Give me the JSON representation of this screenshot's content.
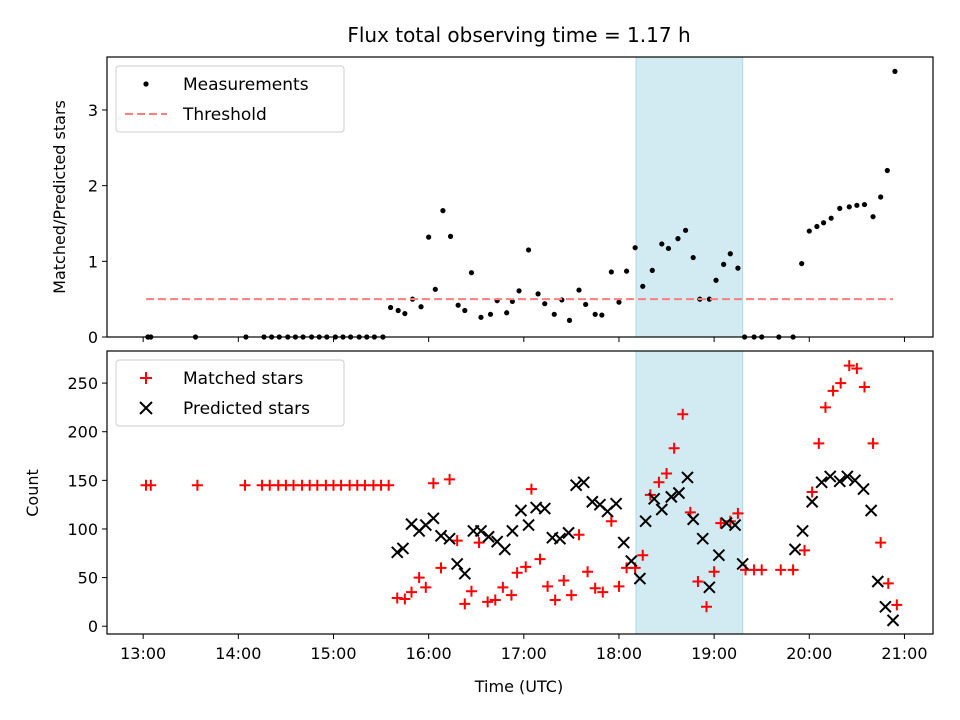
{
  "chart_data": [
    {
      "type": "scatter",
      "title": "Flux total observing time = 1.17 h",
      "xlabel": "",
      "ylabel": "Matched/Predicted stars",
      "xlim": [
        12.62,
        21.3
      ],
      "ylim": [
        0,
        3.7
      ],
      "yticks": [
        0,
        1,
        2,
        3
      ],
      "highlight_span": [
        18.18,
        19.3
      ],
      "legend_position": "upper-left",
      "series": [
        {
          "name": "Measurements",
          "marker": "dot",
          "color": "#000000",
          "x": [
            13.05,
            13.08,
            13.55,
            14.08,
            14.27,
            14.35,
            14.43,
            14.52,
            14.6,
            14.68,
            14.77,
            14.85,
            14.93,
            15.02,
            15.1,
            15.18,
            15.27,
            15.35,
            15.43,
            15.52,
            15.6,
            15.68,
            15.75,
            15.83,
            15.92,
            16.0,
            16.07,
            16.15,
            16.23,
            16.31,
            16.38,
            16.45,
            16.55,
            16.65,
            16.72,
            16.82,
            16.88,
            16.95,
            17.05,
            17.15,
            17.22,
            17.32,
            17.4,
            17.48,
            17.58,
            17.65,
            17.75,
            17.82,
            17.92,
            18.0,
            18.08,
            18.17,
            18.25,
            18.35,
            18.45,
            18.52,
            18.62,
            18.7,
            18.78,
            18.85,
            18.95,
            19.02,
            19.1,
            19.17,
            19.25,
            19.32,
            19.42,
            19.5,
            19.68,
            19.83,
            19.92,
            20.0,
            20.08,
            20.15,
            20.23,
            20.32,
            20.42,
            20.5,
            20.58,
            20.67,
            20.75,
            20.82,
            20.9
          ],
          "y": [
            0,
            0,
            0,
            0,
            0,
            0,
            0,
            0,
            0,
            0,
            0,
            0,
            0,
            0,
            0,
            0,
            0,
            0,
            0,
            0,
            0.39,
            0.35,
            0.31,
            0.5,
            0.4,
            1.32,
            0.63,
            1.67,
            1.33,
            0.42,
            0.35,
            0.85,
            0.26,
            0.3,
            0.48,
            0.32,
            0.47,
            0.61,
            1.15,
            0.57,
            0.44,
            0.3,
            0.49,
            0.22,
            0.62,
            0.43,
            0.3,
            0.29,
            0.86,
            0.46,
            0.87,
            1.18,
            0.67,
            0.88,
            1.23,
            1.17,
            1.3,
            1.41,
            1.05,
            0.5,
            0.5,
            0.75,
            0.96,
            1.1,
            0.91,
            0,
            0,
            0,
            0,
            0,
            0.97,
            1.4,
            1.46,
            1.51,
            1.57,
            1.7,
            1.72,
            1.74,
            1.75,
            1.59,
            1.85,
            2.2,
            3.51
          ]
        },
        {
          "name": "Threshold",
          "line_style": "dashed",
          "color": "#ff7f7f",
          "x": [
            13.03,
            20.88
          ],
          "y": [
            0.5,
            0.5
          ]
        }
      ]
    },
    {
      "type": "scatter",
      "title": "",
      "xlabel": "Time (UTC)",
      "ylabel": "Count",
      "xlim": [
        12.62,
        21.3
      ],
      "ylim": [
        -8,
        283
      ],
      "xticks": [
        13,
        14,
        15,
        16,
        17,
        18,
        19,
        20,
        21
      ],
      "xtick_labels": [
        "13:00",
        "14:00",
        "15:00",
        "16:00",
        "17:00",
        "18:00",
        "19:00",
        "20:00",
        "21:00"
      ],
      "yticks": [
        0,
        50,
        100,
        150,
        200,
        250
      ],
      "highlight_span": [
        18.18,
        19.3
      ],
      "legend_position": "upper-left",
      "series": [
        {
          "name": "Matched stars",
          "marker": "plus",
          "color": "#ff0000",
          "x": [
            13.03,
            13.08,
            13.57,
            14.07,
            14.25,
            14.33,
            14.42,
            14.5,
            14.58,
            14.67,
            14.75,
            14.83,
            14.92,
            15.0,
            15.08,
            15.17,
            15.25,
            15.33,
            15.42,
            15.5,
            15.58,
            15.67,
            15.75,
            15.82,
            15.9,
            15.97,
            16.05,
            16.13,
            16.22,
            16.3,
            16.38,
            16.45,
            16.53,
            16.62,
            16.7,
            16.78,
            16.87,
            16.93,
            17.02,
            17.08,
            17.17,
            17.25,
            17.33,
            17.42,
            17.5,
            17.58,
            17.67,
            17.75,
            17.83,
            17.92,
            18.0,
            18.08,
            18.17,
            18.25,
            18.33,
            18.42,
            18.5,
            18.58,
            18.67,
            18.75,
            18.83,
            18.92,
            19.0,
            19.07,
            19.17,
            19.25,
            19.33,
            19.42,
            19.5,
            19.7,
            19.83,
            19.95,
            20.03,
            20.1,
            20.17,
            20.25,
            20.33,
            20.42,
            20.5,
            20.58,
            20.67,
            20.75,
            20.83,
            20.92
          ],
          "y": [
            145,
            145,
            145,
            145,
            145,
            145,
            145,
            145,
            145,
            145,
            145,
            145,
            145,
            145,
            145,
            145,
            145,
            145,
            145,
            145,
            145,
            29,
            28,
            35,
            50,
            40,
            147,
            60,
            151,
            88,
            23,
            36,
            86,
            25,
            27,
            40,
            32,
            55,
            61,
            141,
            69,
            41,
            27,
            47,
            32,
            94,
            56,
            39,
            35,
            108,
            41,
            60,
            60,
            73,
            135,
            148,
            157,
            183,
            218,
            117,
            46,
            20,
            56,
            106,
            108,
            116,
            58,
            58,
            58,
            58,
            58,
            78,
            138,
            188,
            225,
            242,
            250,
            268,
            265,
            246,
            188,
            86,
            44,
            22
          ]
        },
        {
          "name": "Predicted stars",
          "marker": "x",
          "color": "#000000",
          "x": [
            15.67,
            15.73,
            15.82,
            15.9,
            15.97,
            16.05,
            16.13,
            16.22,
            16.3,
            16.38,
            16.47,
            16.55,
            16.63,
            16.72,
            16.8,
            16.88,
            16.97,
            17.05,
            17.13,
            17.22,
            17.3,
            17.38,
            17.47,
            17.55,
            17.63,
            17.72,
            17.8,
            17.88,
            17.97,
            18.05,
            18.13,
            18.22,
            18.28,
            18.37,
            18.45,
            18.55,
            18.63,
            18.72,
            18.78,
            18.88,
            18.95,
            19.05,
            19.13,
            19.22,
            19.3,
            19.85,
            19.93,
            20.03,
            20.13,
            20.22,
            20.32,
            20.4,
            20.48,
            20.57,
            20.65,
            20.72,
            20.8,
            20.88
          ],
          "y": [
            76,
            80,
            105,
            98,
            104,
            111,
            93,
            90,
            64,
            54,
            98,
            98,
            92,
            87,
            79,
            98,
            119,
            104,
            122,
            121,
            91,
            90,
            96,
            145,
            148,
            128,
            125,
            118,
            126,
            86,
            67,
            49,
            108,
            131,
            120,
            133,
            137,
            153,
            110,
            90,
            40,
            73,
            106,
            104,
            64,
            79,
            98,
            128,
            148,
            154,
            149,
            154,
            150,
            141,
            119,
            46,
            20,
            6
          ]
        }
      ]
    }
  ]
}
